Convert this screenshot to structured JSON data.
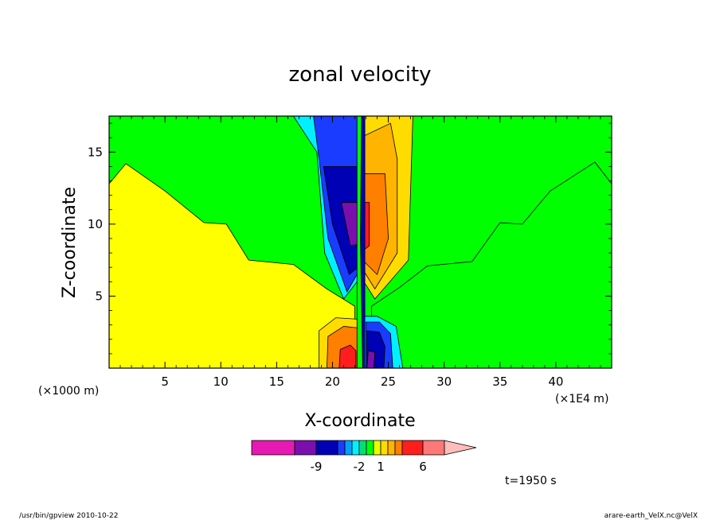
{
  "chart_data": {
    "type": "contour",
    "title": "zonal velocity",
    "xlabel": "X-coordinate",
    "ylabel": "Z-coordinate",
    "x_units_left": "(×1000 m)",
    "x_units_right": "(×1E4 m)",
    "xlim": [
      0,
      45
    ],
    "ylim": [
      0,
      17.5
    ],
    "x_ticks": [
      "5",
      "10",
      "15",
      "20",
      "25",
      "30",
      "35",
      "40"
    ],
    "y_ticks": [
      "5",
      "10",
      "15"
    ],
    "x_tick_values": [
      5,
      10,
      15,
      20,
      25,
      30,
      35,
      40
    ],
    "y_tick_values": [
      5,
      10,
      15
    ],
    "colorbar": {
      "labels": [
        "-9",
        "-2",
        "1",
        "6"
      ],
      "label_levels": [
        -9,
        -2,
        1,
        6
      ],
      "levels": [
        -15,
        -12,
        -9,
        -6,
        -4,
        -3,
        -2,
        -1,
        0,
        1,
        2,
        3,
        4,
        6,
        9,
        12,
        15
      ],
      "colors": [
        "#e619b3",
        "#7b0fae",
        "#0000b4",
        "#1a3cff",
        "#00a0ff",
        "#00f0ff",
        "#00e07a",
        "#00ff00",
        "#e6ff00",
        "#ffdc00",
        "#ffb400",
        "#ff7f00",
        "#ff1e1e",
        "#ff7878",
        "#ffbcbc"
      ]
    },
    "fields": {
      "background_positive": "#ffff00",
      "background_negative": "#00ff00",
      "boundary_left_z": [
        [
          0,
          12.8
        ],
        [
          1.5,
          14.2
        ],
        [
          5,
          12.3
        ],
        [
          8.5,
          10.1
        ],
        [
          10.5,
          10.0
        ],
        [
          12.5,
          7.5
        ],
        [
          16.5,
          7.2
        ],
        [
          19.5,
          5.5
        ],
        [
          22,
          4.3
        ]
      ],
      "boundary_right_z": [
        [
          23.5,
          4.3
        ],
        [
          26,
          5.6
        ],
        [
          28.5,
          7.1
        ],
        [
          32.5,
          7.4
        ],
        [
          35,
          10.1
        ],
        [
          37,
          10.0
        ],
        [
          39.5,
          12.3
        ],
        [
          43.5,
          14.3
        ],
        [
          45,
          12.8
        ]
      ]
    },
    "annotation": "t=1950 s"
  },
  "footer": {
    "left": "/usr/bin/gpview  2010-10-22",
    "right": "arare-earth_VelX.nc@VelX"
  }
}
